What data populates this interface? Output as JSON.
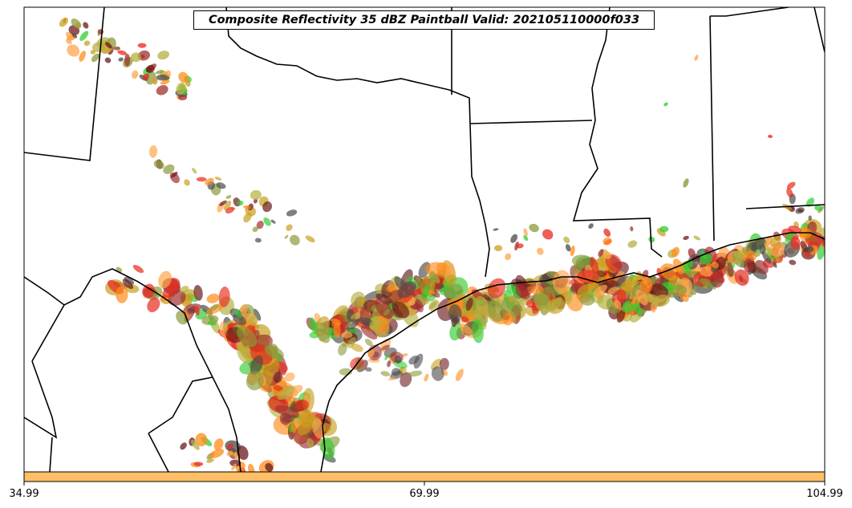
{
  "title": "Composite Reflectivity 35 dBZ Paintball Valid: 202105110000f033",
  "colorbar": {
    "color": "#ffbf66",
    "tick_labels": [
      "34.99",
      "69.99",
      "104.99"
    ]
  },
  "palette": [
    "#e8291c",
    "#ff8c1a",
    "#ffa64d",
    "#32cd32",
    "#4a4a4a",
    "#6b1a1a",
    "#8c9a3a",
    "#b5b040",
    "#c8a020",
    "#a03030"
  ]
}
